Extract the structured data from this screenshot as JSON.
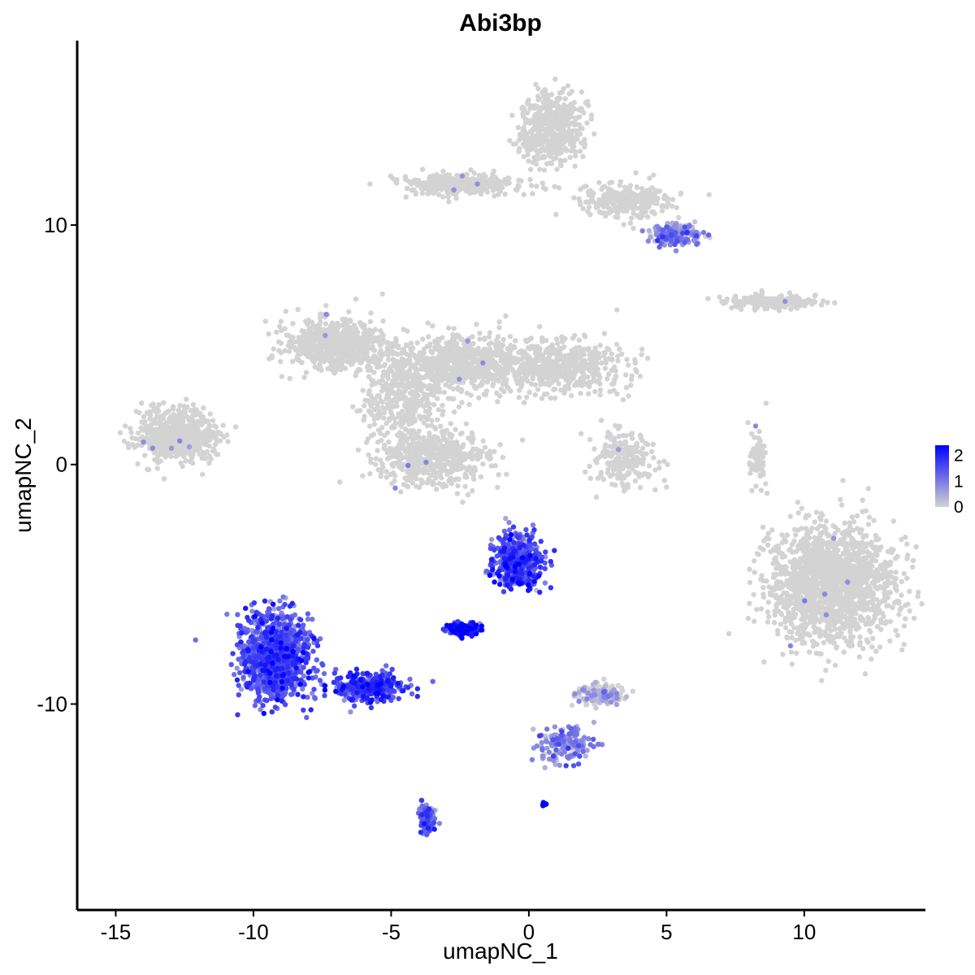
{
  "chart_data": {
    "type": "scatter",
    "title": "Abi3bp",
    "xlabel": "umapNC_1",
    "ylabel": "umapNC_2",
    "xlim": [
      -16.4,
      14.4
    ],
    "ylim": [
      -18.6,
      17.7
    ],
    "x_ticks": [
      -15,
      -10,
      -5,
      0,
      5,
      10
    ],
    "y_ticks": [
      -10,
      0,
      10
    ],
    "grid": false,
    "legend": {
      "position": "right",
      "type": "colorbar",
      "ticks": [
        0,
        1,
        2
      ],
      "range": [
        0,
        2.4
      ],
      "low_color": "#d3d3d3",
      "high_color": "#0000ff"
    },
    "clusters": [
      {
        "center": [
          -12.8,
          1.2
        ],
        "spread": [
          1.3,
          1.0
        ],
        "n": 650,
        "expression": 0.0
      },
      {
        "center": [
          -7.0,
          5.0
        ],
        "spread": [
          1.6,
          0.9
        ],
        "n": 700,
        "expression": 0.0
      },
      {
        "center": [
          -4.6,
          3.0
        ],
        "spread": [
          1.2,
          1.6
        ],
        "n": 400,
        "expression": 0.0
      },
      {
        "center": [
          -2.3,
          4.2
        ],
        "spread": [
          2.2,
          1.1
        ],
        "n": 650,
        "expression": 0.0
      },
      {
        "center": [
          -3.5,
          0.3
        ],
        "spread": [
          1.8,
          1.1
        ],
        "n": 550,
        "expression": 0.0
      },
      {
        "center": [
          1.2,
          4.1
        ],
        "spread": [
          1.9,
          1.0
        ],
        "n": 500,
        "expression": 0.0
      },
      {
        "center": [
          0.8,
          14.0
        ],
        "spread": [
          1.0,
          1.3
        ],
        "n": 500,
        "expression": 0.0
      },
      {
        "center": [
          -2.5,
          11.7
        ],
        "spread": [
          2.2,
          0.4
        ],
        "n": 350,
        "expression": 0.0
      },
      {
        "center": [
          3.6,
          11.0
        ],
        "spread": [
          1.4,
          0.6
        ],
        "n": 300,
        "expression": 0.0
      },
      {
        "center": [
          5.3,
          9.6
        ],
        "spread": [
          0.9,
          0.4
        ],
        "n": 200,
        "expression": 0.7
      },
      {
        "center": [
          8.8,
          6.8
        ],
        "spread": [
          1.5,
          0.25
        ],
        "n": 220,
        "expression": 0.0
      },
      {
        "center": [
          3.5,
          0.2
        ],
        "spread": [
          1.0,
          1.0
        ],
        "n": 200,
        "expression": 0.0
      },
      {
        "center": [
          8.3,
          0.2
        ],
        "spread": [
          0.3,
          1.0
        ],
        "n": 70,
        "expression": 0.0
      },
      {
        "center": [
          11.0,
          -5.0
        ],
        "spread": [
          2.0,
          2.2
        ],
        "n": 1700,
        "expression": 0.0
      },
      {
        "center": [
          -9.2,
          -8.0
        ],
        "spread": [
          1.1,
          1.6
        ],
        "n": 1100,
        "expression": 1.3
      },
      {
        "center": [
          -5.8,
          -9.3
        ],
        "spread": [
          1.1,
          0.55
        ],
        "n": 350,
        "expression": 1.5
      },
      {
        "center": [
          -3.7,
          -14.8
        ],
        "spread": [
          0.25,
          0.6
        ],
        "n": 100,
        "expression": 1.1
      },
      {
        "center": [
          -0.4,
          -4.0
        ],
        "spread": [
          0.8,
          1.0
        ],
        "n": 420,
        "expression": 1.5
      },
      {
        "center": [
          -2.4,
          -6.9
        ],
        "spread": [
          0.45,
          0.22
        ],
        "n": 160,
        "expression": 1.9
      },
      {
        "center": [
          1.3,
          -11.7
        ],
        "spread": [
          1.0,
          0.7
        ],
        "n": 160,
        "expression": 0.8
      },
      {
        "center": [
          2.6,
          -9.6
        ],
        "spread": [
          0.8,
          0.4
        ],
        "n": 170,
        "expression": 0.05
      },
      {
        "center": [
          0.55,
          -14.2
        ],
        "spread": [
          0.06,
          0.06
        ],
        "n": 15,
        "expression": 2.4
      }
    ]
  }
}
